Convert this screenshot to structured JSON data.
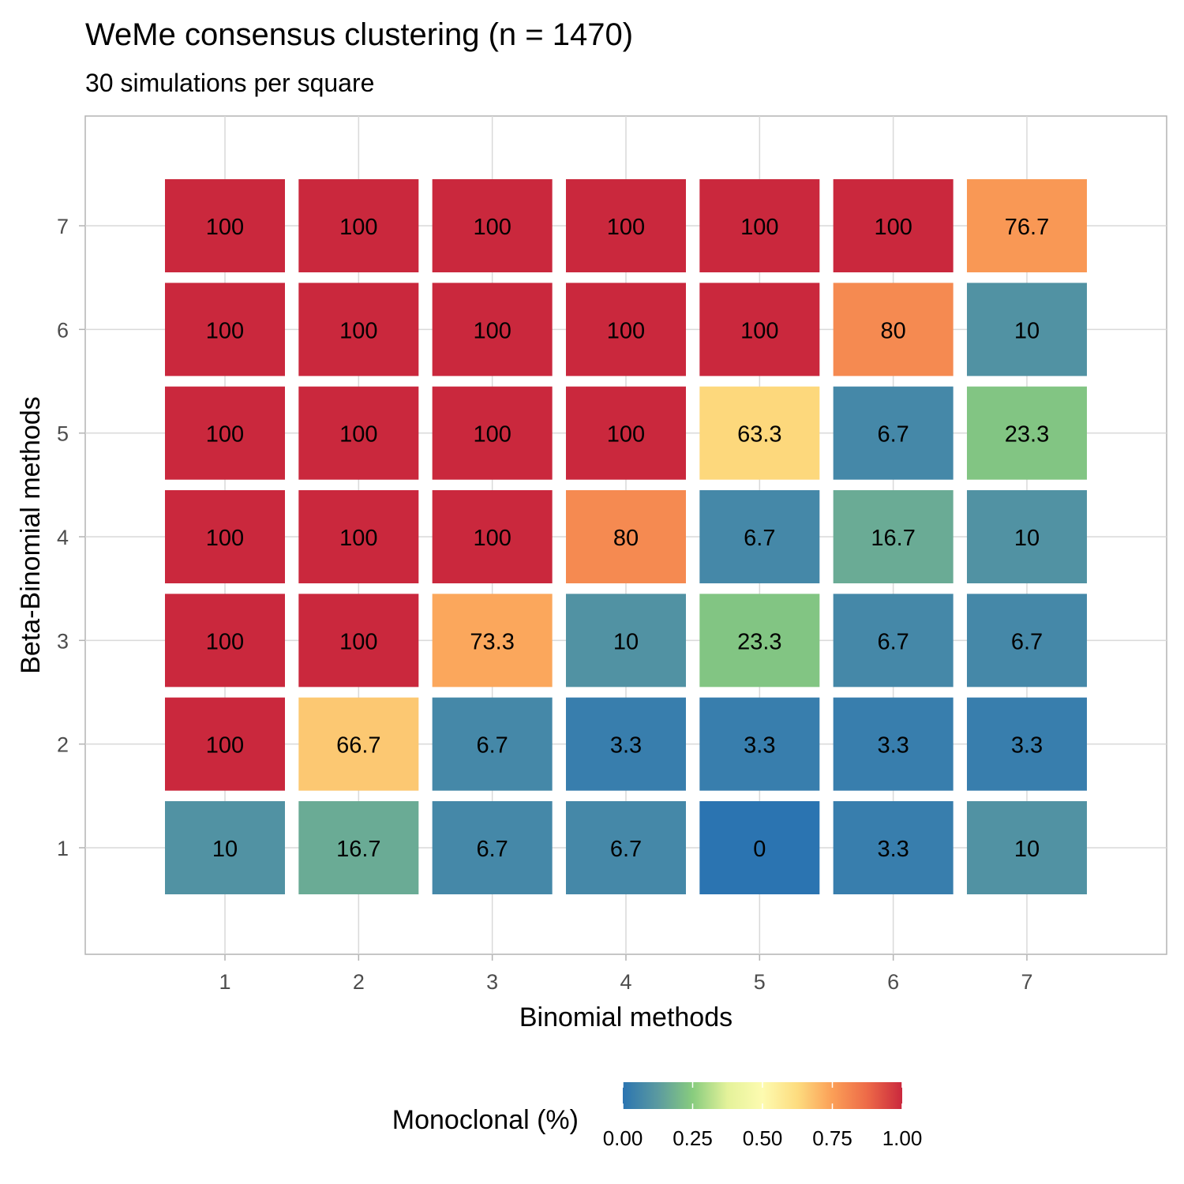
{
  "chart_data": {
    "type": "heatmap",
    "title": "WeMe consensus clustering (n = 1470)",
    "subtitle": "30 simulations per square",
    "xlabel": "Binomial methods",
    "ylabel": "Beta-Binomial methods",
    "x_categories": [
      "1",
      "2",
      "3",
      "4",
      "5",
      "6",
      "7"
    ],
    "y_categories": [
      "1",
      "2",
      "3",
      "4",
      "5",
      "6",
      "7"
    ],
    "xlim": [
      0,
      8
    ],
    "ylim": [
      0,
      8
    ],
    "grid": true,
    "legend": {
      "title": "Monoclonal (%)",
      "position": "bottom",
      "ticks": [
        "0.00",
        "0.25",
        "0.50",
        "0.75",
        "1.00"
      ],
      "range": [
        0,
        1
      ],
      "palette": [
        "#2b74b1",
        "#5b9aa0",
        "#88cc7e",
        "#e4f29a",
        "#fdfbb0",
        "#fddc7f",
        "#fb9f57",
        "#ed6a48",
        "#ca283d"
      ]
    },
    "values": [
      {
        "x": 1,
        "y": 7,
        "label": "100",
        "value": 1.0
      },
      {
        "x": 2,
        "y": 7,
        "label": "100",
        "value": 1.0
      },
      {
        "x": 3,
        "y": 7,
        "label": "100",
        "value": 1.0
      },
      {
        "x": 4,
        "y": 7,
        "label": "100",
        "value": 1.0
      },
      {
        "x": 5,
        "y": 7,
        "label": "100",
        "value": 1.0
      },
      {
        "x": 6,
        "y": 7,
        "label": "100",
        "value": 1.0
      },
      {
        "x": 7,
        "y": 7,
        "label": "76.7",
        "value": 0.767
      },
      {
        "x": 1,
        "y": 6,
        "label": "100",
        "value": 1.0
      },
      {
        "x": 2,
        "y": 6,
        "label": "100",
        "value": 1.0
      },
      {
        "x": 3,
        "y": 6,
        "label": "100",
        "value": 1.0
      },
      {
        "x": 4,
        "y": 6,
        "label": "100",
        "value": 1.0
      },
      {
        "x": 5,
        "y": 6,
        "label": "100",
        "value": 1.0
      },
      {
        "x": 6,
        "y": 6,
        "label": "80",
        "value": 0.8
      },
      {
        "x": 7,
        "y": 6,
        "label": "10",
        "value": 0.1
      },
      {
        "x": 1,
        "y": 5,
        "label": "100",
        "value": 1.0
      },
      {
        "x": 2,
        "y": 5,
        "label": "100",
        "value": 1.0
      },
      {
        "x": 3,
        "y": 5,
        "label": "100",
        "value": 1.0
      },
      {
        "x": 4,
        "y": 5,
        "label": "100",
        "value": 1.0
      },
      {
        "x": 5,
        "y": 5,
        "label": "63.3",
        "value": 0.633
      },
      {
        "x": 6,
        "y": 5,
        "label": "6.7",
        "value": 0.067
      },
      {
        "x": 7,
        "y": 5,
        "label": "23.3",
        "value": 0.233
      },
      {
        "x": 1,
        "y": 4,
        "label": "100",
        "value": 1.0
      },
      {
        "x": 2,
        "y": 4,
        "label": "100",
        "value": 1.0
      },
      {
        "x": 3,
        "y": 4,
        "label": "100",
        "value": 1.0
      },
      {
        "x": 4,
        "y": 4,
        "label": "80",
        "value": 0.8
      },
      {
        "x": 5,
        "y": 4,
        "label": "6.7",
        "value": 0.067
      },
      {
        "x": 6,
        "y": 4,
        "label": "16.7",
        "value": 0.167
      },
      {
        "x": 7,
        "y": 4,
        "label": "10",
        "value": 0.1
      },
      {
        "x": 1,
        "y": 3,
        "label": "100",
        "value": 1.0
      },
      {
        "x": 2,
        "y": 3,
        "label": "100",
        "value": 1.0
      },
      {
        "x": 3,
        "y": 3,
        "label": "73.3",
        "value": 0.733
      },
      {
        "x": 4,
        "y": 3,
        "label": "10",
        "value": 0.1
      },
      {
        "x": 5,
        "y": 3,
        "label": "23.3",
        "value": 0.233
      },
      {
        "x": 6,
        "y": 3,
        "label": "6.7",
        "value": 0.067
      },
      {
        "x": 7,
        "y": 3,
        "label": "6.7",
        "value": 0.067
      },
      {
        "x": 1,
        "y": 2,
        "label": "100",
        "value": 1.0
      },
      {
        "x": 2,
        "y": 2,
        "label": "66.7",
        "value": 0.667
      },
      {
        "x": 3,
        "y": 2,
        "label": "6.7",
        "value": 0.067
      },
      {
        "x": 4,
        "y": 2,
        "label": "3.3",
        "value": 0.033
      },
      {
        "x": 5,
        "y": 2,
        "label": "3.3",
        "value": 0.033
      },
      {
        "x": 6,
        "y": 2,
        "label": "3.3",
        "value": 0.033
      },
      {
        "x": 7,
        "y": 2,
        "label": "3.3",
        "value": 0.033
      },
      {
        "x": 1,
        "y": 1,
        "label": "10",
        "value": 0.1
      },
      {
        "x": 2,
        "y": 1,
        "label": "16.7",
        "value": 0.167
      },
      {
        "x": 3,
        "y": 1,
        "label": "6.7",
        "value": 0.067
      },
      {
        "x": 4,
        "y": 1,
        "label": "6.7",
        "value": 0.067
      },
      {
        "x": 5,
        "y": 1,
        "label": "0",
        "value": 0.0
      },
      {
        "x": 6,
        "y": 1,
        "label": "3.3",
        "value": 0.033
      },
      {
        "x": 7,
        "y": 1,
        "label": "10",
        "value": 0.1
      }
    ]
  }
}
